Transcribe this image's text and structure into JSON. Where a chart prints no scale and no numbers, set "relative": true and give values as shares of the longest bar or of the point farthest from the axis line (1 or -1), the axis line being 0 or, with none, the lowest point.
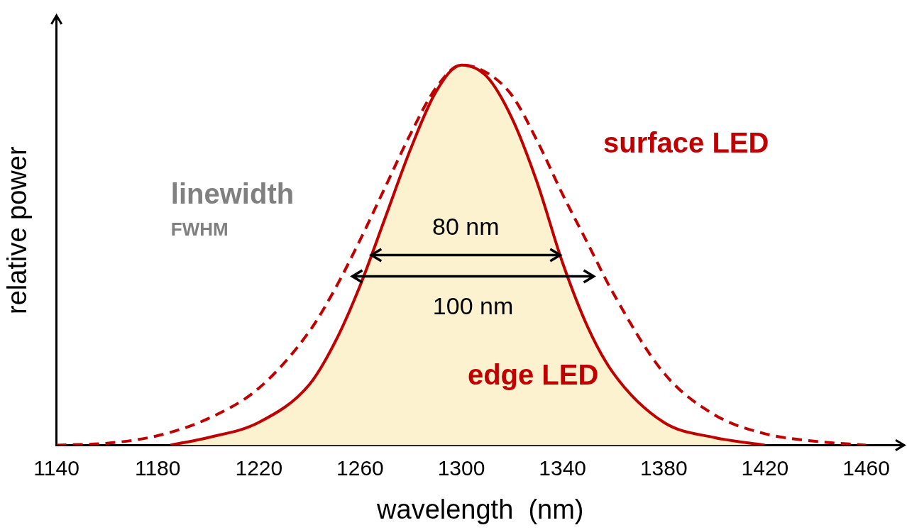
{
  "chart_data": {
    "type": "line",
    "xlabel": "wavelength  (nm)",
    "ylabel": "relative power",
    "relative": true,
    "xlim": [
      1140,
      1475
    ],
    "xticks": [
      1140,
      1180,
      1220,
      1260,
      1300,
      1340,
      1380,
      1420,
      1460
    ],
    "grid": false,
    "legend": false,
    "marker": "none",
    "series": [
      {
        "name": "edge LED",
        "type": "area",
        "color": "#c00000",
        "line_style": "solid",
        "x": [
          1185,
          1200,
          1220,
          1240,
          1250,
          1260,
          1270,
          1280,
          1290,
          1300,
          1310,
          1320,
          1330,
          1340,
          1350,
          1360,
          1380,
          1400,
          1420
        ],
        "values": [
          0,
          0.02,
          0.06,
          0.16,
          0.27,
          0.42,
          0.6,
          0.78,
          0.93,
          1,
          0.97,
          0.86,
          0.69,
          0.48,
          0.31,
          0.19,
          0.06,
          0.02,
          0
        ]
      },
      {
        "name": "surface LED",
        "type": "line",
        "color": "#c00000",
        "line_style": "dashed",
        "x": [
          1140,
          1160,
          1180,
          1200,
          1220,
          1240,
          1250,
          1260,
          1270,
          1280,
          1290,
          1300,
          1310,
          1320,
          1330,
          1340,
          1350,
          1360,
          1380,
          1400,
          1420,
          1440,
          1460
        ],
        "values": [
          0,
          0.005,
          0.025,
          0.07,
          0.15,
          0.3,
          0.41,
          0.54,
          0.68,
          0.82,
          0.94,
          1,
          0.98,
          0.92,
          0.8,
          0.66,
          0.53,
          0.4,
          0.19,
          0.08,
          0.03,
          0.01,
          0
        ]
      }
    ],
    "annotations": [
      "linewidth",
      "FWHM",
      "80 nm",
      "100 nm"
    ]
  }
}
